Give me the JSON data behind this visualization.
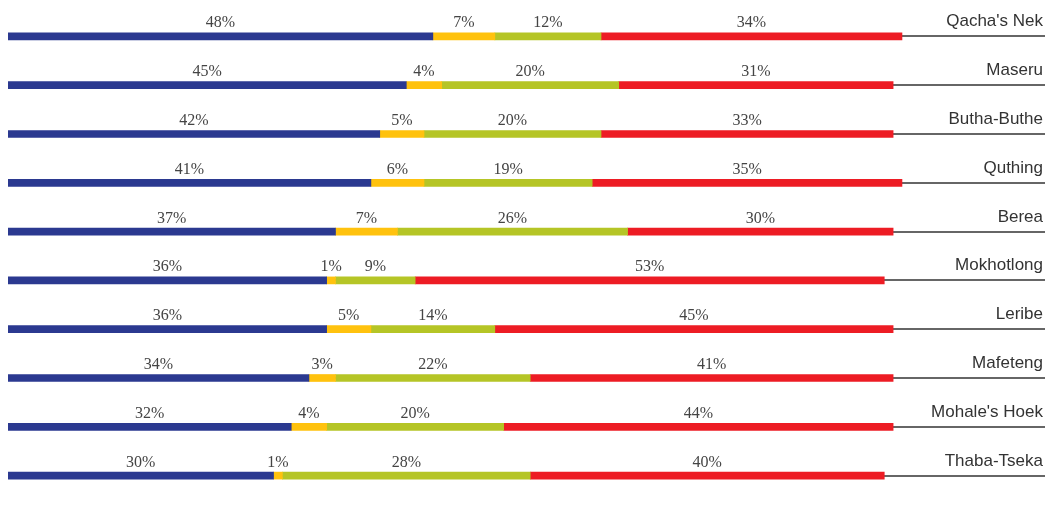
{
  "chart_data": {
    "type": "bar",
    "orientation": "horizontal",
    "stacked": true,
    "grid": "y",
    "legend": false,
    "tick_labels": "y",
    "categories": [
      "Qacha's Nek",
      "Maseru",
      "Butha-Buthe",
      "Quthing",
      "Berea",
      "Mokhotlong",
      "Leribe",
      "Mafeteng",
      "Mohale's Hoek",
      "Thaba-Tseka"
    ],
    "series": [
      {
        "color": "#2b3990",
        "values": [
          48,
          45,
          42,
          41,
          37,
          36,
          36,
          34,
          32,
          30
        ],
        "value_labels": [
          "48%",
          "45%",
          "42%",
          "41%",
          "37%",
          "36%",
          "36%",
          "34%",
          "32%",
          "30%"
        ]
      },
      {
        "color": "#ffc20e",
        "values": [
          7,
          4,
          5,
          6,
          7,
          1,
          5,
          3,
          4,
          1
        ],
        "value_labels": [
          "7%",
          "4%",
          "5%",
          "6%",
          "7%",
          "1%",
          "5%",
          "3%",
          "4%",
          "1%"
        ]
      },
      {
        "color": "#b5c526",
        "values": [
          12,
          20,
          20,
          19,
          26,
          9,
          14,
          22,
          20,
          28
        ],
        "value_labels": [
          "12%",
          "20%",
          "20%",
          "19%",
          "26%",
          "9%",
          "14%",
          "22%",
          "20%",
          "28%"
        ]
      },
      {
        "color": "#ed1c24",
        "values": [
          34,
          31,
          33,
          35,
          30,
          53,
          45,
          41,
          44,
          40
        ],
        "value_labels": [
          "34%",
          "31%",
          "33%",
          "35%",
          "30%",
          "53%",
          "45%",
          "41%",
          "44%",
          "40%"
        ]
      }
    ]
  }
}
